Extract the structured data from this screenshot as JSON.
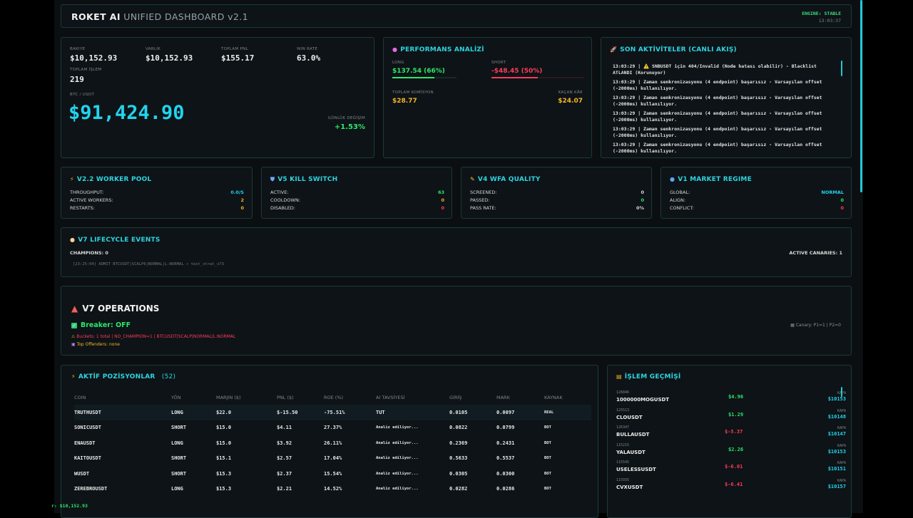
{
  "header": {
    "title_bold": "ROKET AI",
    "title_rest": "UNIFIED DASHBOARD v2.1",
    "engine": "ENGINE: STABLE",
    "time": "13:03:37"
  },
  "balance": {
    "stats": [
      {
        "label": "BAKIYE",
        "value": "$10,152.93"
      },
      {
        "label": "VARLIK",
        "value": "$10,152.93"
      },
      {
        "label": "TOPLAM PNL",
        "value": "$155.17"
      },
      {
        "label": "WIN RATE",
        "value": "63.0%"
      }
    ],
    "trades_label": "TOPLAM İŞLEM",
    "trades_value": "219",
    "pair_label": "BTC / USDT",
    "price": "$91,424.90",
    "change_label": "GÜNLÜK DEĞİŞİM",
    "change_value": "+1.53%"
  },
  "performance": {
    "title": "PERFORMANS ANALİZİ",
    "icon": "brain-icon",
    "long_label": "LONG",
    "long_value": "$137.54 (66%)",
    "long_fill": 0.66,
    "short_label": "SHORT",
    "short_value": "-$48.45 (50%)",
    "short_fill": 0.5,
    "commission_label": "TOPLAM KOMİSYON",
    "commission_value": "$28.77",
    "missed_label": "KAÇAN KÂR",
    "missed_value": "$24.07"
  },
  "activity": {
    "title": "SON AKTİVİTELER (CANLI AKIŞ)",
    "icon": "rocket-icon",
    "lines": [
      "13:03:29 | ⚠️ SNBUSDT için 404/Invalid (Node hatası olabilir) - Blacklist ATLANDI (Korunuyor)",
      "13:03:29 | Zaman senkronizasyonu (4 endpoint) başarısız - Varsayılan offset (-2000ms) kullanılıyor.",
      "13:03:29 | Zaman senkronizasyonu (4 endpoint) başarısız - Varsayılan offset (-2000ms) kullanılıyor.",
      "13:03:29 | Zaman senkronizasyonu (4 endpoint) başarısız - Varsayılan offset (-2000ms) kullanılıyor.",
      "13:03:29 | Zaman senkronizasyonu (4 endpoint) başarısız - Varsayılan offset (-2000ms) kullanılıyor.",
      "13:03:29 | Zaman senkronizasyonu (4 endpoint) başarısız - Varsayılan offset (-2000ms) kullanılıyor."
    ]
  },
  "worker": {
    "title": "V2.2 WORKER POOL",
    "icon": "bolt-icon",
    "rows": [
      {
        "k": "THROUGHPUT:",
        "v": "0.0/s"
      },
      {
        "k": "ACTIVE WORKERS:",
        "v": "2"
      },
      {
        "k": "RESTARTS:",
        "v": "0"
      }
    ]
  },
  "kill": {
    "title": "V5 KILL SWITCH",
    "icon": "shield-icon",
    "rows": [
      {
        "k": "ACTIVE:",
        "v": "63"
      },
      {
        "k": "COOLDOWN:",
        "v": "0"
      },
      {
        "k": "DISABLED:",
        "v": "0"
      }
    ]
  },
  "wfa": {
    "title": "V4 WFA QUALITY",
    "icon": "pencil-icon",
    "rows": [
      {
        "k": "SCREENED:",
        "v": "0"
      },
      {
        "k": "PASSED:",
        "v": "0"
      },
      {
        "k": "PASS RATE:",
        "v": "0%"
      }
    ]
  },
  "regime": {
    "title": "V1 MARKET REGIME",
    "icon": "globe-icon",
    "rows": [
      {
        "k": "GLOBAL:",
        "v": "NORMAL"
      },
      {
        "k": "ALIGN:",
        "v": "0"
      },
      {
        "k": "CONFLICT:",
        "v": "0"
      }
    ]
  },
  "lifecycle": {
    "title": "V7 LIFECYCLE EVENTS",
    "icon": "egg-icon",
    "champions": "CHAMPIONS: 0",
    "canaries": "ACTIVE CANARIES: 1",
    "event": "[23:25:04] ADMIT BTCUSDT|SCALP6|NORMAL|L:NORMAL → test_strat_v73"
  },
  "ops": {
    "title": "V7 OPERATIONS",
    "icon": "siren-icon",
    "breaker": "Breaker: OFF",
    "buckets": "Buckets: 1 total | NO_CHAMPION=1 | BTCUSDT|SCALP|NORMAL|L:NORMAL",
    "offenders": "Top Offenders: none",
    "canary": "Canary: P1=1 | P2=0"
  },
  "positions": {
    "title": "AKTİF POZİSYONLAR",
    "count": "(52)",
    "icon": "bolt-icon",
    "columns": [
      "COIN",
      "YÖN",
      "MARJIN ($)",
      "PNL ($)",
      "ROE (%)",
      "AI TAVSİYESİ",
      "GİRİŞ",
      "MARK",
      "KAYNAK"
    ],
    "rows": [
      {
        "coin": "TRUTHUSDT",
        "dir": "LONG",
        "margin": "$22.0",
        "pnl": "$-15.50",
        "roe": "-75.51%",
        "ai": "TUT",
        "entry": "0.0105",
        "mark": "0.0097",
        "src": "REAL"
      },
      {
        "coin": "SONICUSDT",
        "dir": "SHORT",
        "margin": "$15.0",
        "pnl": "$4.11",
        "roe": "27.37%",
        "ai": "Analiz ediliyor...",
        "entry": "0.0822",
        "mark": "0.0799",
        "src": "BOT"
      },
      {
        "coin": "ENAUSDT",
        "dir": "LONG",
        "margin": "$15.0",
        "pnl": "$3.92",
        "roe": "26.11%",
        "ai": "Analiz ediliyor...",
        "entry": "0.2369",
        "mark": "0.2431",
        "src": "BOT"
      },
      {
        "coin": "KAITOUSDT",
        "dir": "SHORT",
        "margin": "$15.1",
        "pnl": "$2.57",
        "roe": "17.04%",
        "ai": "Analiz ediliyor...",
        "entry": "0.5633",
        "mark": "0.5537",
        "src": "BOT"
      },
      {
        "coin": "WUSDT",
        "dir": "SHORT",
        "margin": "$15.3",
        "pnl": "$2.37",
        "roe": "15.54%",
        "ai": "Analiz ediliyor...",
        "entry": "0.0305",
        "mark": "0.0300",
        "src": "BOT"
      },
      {
        "coin": "ZEREBROUSDT",
        "dir": "LONG",
        "margin": "$15.3",
        "pnl": "$2.21",
        "roe": "14.52%",
        "ai": "Analiz ediliyor...",
        "entry": "0.0282",
        "mark": "0.0286",
        "src": "BOT"
      }
    ]
  },
  "history": {
    "title": "İŞLEM GEÇMİŞİ",
    "icon": "receipt-icon",
    "rows": [
      {
        "id": "126846",
        "sym": "1000000MOGUSDT",
        "pnl": "$4.96",
        "pos": "green",
        "cls": "KAPA",
        "bal": "$10153"
      },
      {
        "id": "125513",
        "sym": "CLOUSDT",
        "pnl": "$1.29",
        "pos": "green",
        "cls": "KAPA",
        "bal": "$10148"
      },
      {
        "id": "126347",
        "sym": "BULLAUSDT",
        "pnl": "$-5.37",
        "pos": "red",
        "cls": "KAPA",
        "bal": "$10147"
      },
      {
        "id": "115215",
        "sym": "YALAUSDT",
        "pnl": "$2.26",
        "pos": "green",
        "cls": "KAPA",
        "bal": "$10153"
      },
      {
        "id": "115545",
        "sym": "USELESSUSDT",
        "pnl": "$-6.01",
        "pos": "red",
        "cls": "KAPA",
        "bal": "$10151"
      },
      {
        "id": "115935",
        "sym": "CVXUSDT",
        "pnl": "$-6.41",
        "pos": "red",
        "cls": "KAPA",
        "bal": "$10157"
      }
    ]
  },
  "footer": {
    "text": "r: $10,152.93"
  }
}
